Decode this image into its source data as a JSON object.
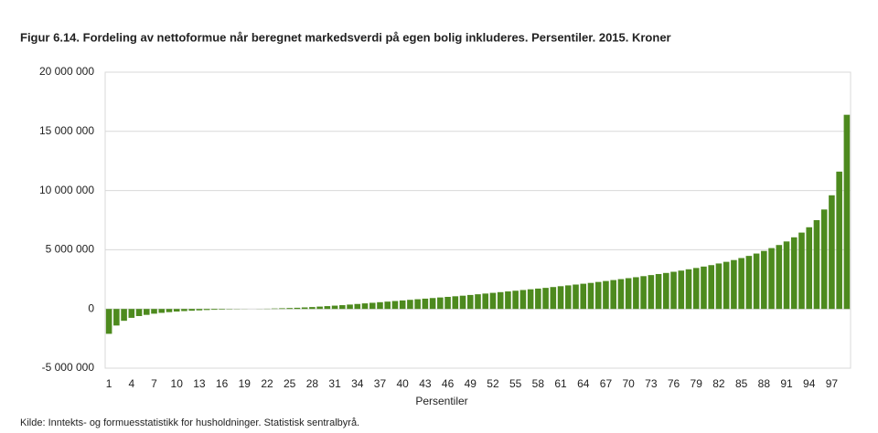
{
  "chart_data": {
    "type": "bar",
    "title": "Figur 6.14. Fordeling av nettoformue når beregnet markedsverdi på egen bolig inkluderes. Persentiler. 2015. Kroner",
    "x_label": "Persentiler",
    "source": "Kilde: Inntekts- og formuesstatistikk for husholdninger. Statistisk sentralbyrå.",
    "color": "#4d8a1e",
    "grid": true,
    "categories": [
      1,
      null,
      null,
      4,
      null,
      null,
      7,
      null,
      null,
      10,
      null,
      null,
      13,
      null,
      null,
      16,
      null,
      null,
      19,
      null,
      null,
      22,
      null,
      null,
      25,
      null,
      null,
      28,
      null,
      null,
      31,
      null,
      null,
      34,
      null,
      null,
      37,
      null,
      null,
      40,
      null,
      null,
      43,
      null,
      null,
      46,
      null,
      null,
      49,
      null,
      null,
      52,
      null,
      null,
      55,
      null,
      null,
      58,
      null,
      null,
      61,
      null,
      null,
      64,
      null,
      null,
      67,
      null,
      null,
      70,
      null,
      null,
      73,
      null,
      null,
      76,
      null,
      null,
      79,
      null,
      null,
      82,
      null,
      null,
      85,
      null,
      null,
      88,
      null,
      null,
      91,
      null,
      null,
      94,
      null,
      null,
      97,
      null,
      null
    ],
    "values": [
      -2100000,
      -1400000,
      -1000000,
      -750000,
      -600000,
      -500000,
      -400000,
      -330000,
      -270000,
      -220000,
      -180000,
      -150000,
      -120000,
      -90000,
      -70000,
      -50000,
      -30000,
      -20000,
      -10000,
      0,
      10000,
      20000,
      40000,
      60000,
      80000,
      100000,
      130000,
      160000,
      200000,
      240000,
      280000,
      320000,
      370000,
      420000,
      470000,
      520000,
      570000,
      620000,
      670000,
      720000,
      770000,
      820000,
      870000,
      920000,
      970000,
      1020000,
      1070000,
      1120000,
      1180000,
      1240000,
      1300000,
      1360000,
      1420000,
      1480000,
      1540000,
      1600000,
      1660000,
      1720000,
      1780000,
      1850000,
      1920000,
      1990000,
      2060000,
      2130000,
      2200000,
      2280000,
      2360000,
      2440000,
      2520000,
      2600000,
      2680000,
      2770000,
      2860000,
      2950000,
      3040000,
      3140000,
      3240000,
      3350000,
      3460000,
      3580000,
      3700000,
      3840000,
      3980000,
      4130000,
      4300000,
      4480000,
      4680000,
      4900000,
      5140000,
      5400000,
      5700000,
      6050000,
      6450000,
      6900000,
      7500000,
      8400000,
      9600000,
      11600000,
      16400000
    ],
    "ylim": [
      -5000000,
      20000000
    ],
    "yticks": [
      {
        "value": -5000000,
        "label": "-5 000 000"
      },
      0,
      {
        "value": 5000000,
        "label": "5 000 000"
      },
      {
        "value": 10000000,
        "label": "10 000 000"
      },
      {
        "value": 15000000,
        "label": "15 000 000"
      },
      {
        "value": 20000000,
        "label": "20 000 000"
      }
    ]
  }
}
